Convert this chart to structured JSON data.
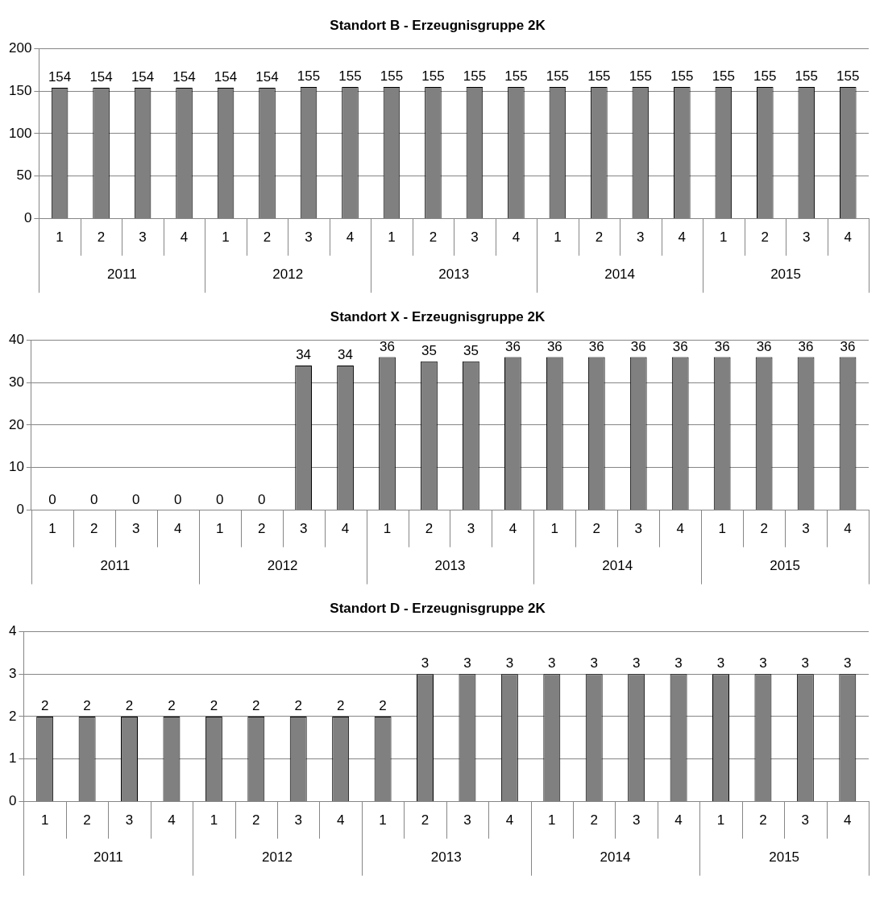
{
  "chart_data": [
    {
      "type": "bar",
      "title": "Standort B - Erzeugnisgruppe 2K",
      "categories": [
        "1",
        "2",
        "3",
        "4",
        "1",
        "2",
        "3",
        "4",
        "1",
        "2",
        "3",
        "4",
        "1",
        "2",
        "3",
        "4",
        "1",
        "2",
        "3",
        "4"
      ],
      "values": [
        154,
        154,
        154,
        154,
        154,
        154,
        155,
        155,
        155,
        155,
        155,
        155,
        155,
        155,
        155,
        155,
        155,
        155,
        155,
        155
      ],
      "color": "#808080",
      "ylim": [
        0,
        200
      ],
      "yticks": [
        0,
        50,
        100,
        150,
        200
      ],
      "grid": "y",
      "legend": false,
      "data_labels": true,
      "annotations": [
        "2011",
        "2012",
        "2013",
        "2014",
        "2015"
      ]
    },
    {
      "type": "bar",
      "title": "Standort X - Erzeugnisgruppe 2K",
      "categories": [
        "1",
        "2",
        "3",
        "4",
        "1",
        "2",
        "3",
        "4",
        "1",
        "2",
        "3",
        "4",
        "1",
        "2",
        "3",
        "4",
        "1",
        "2",
        "3",
        "4"
      ],
      "values": [
        0,
        0,
        0,
        0,
        0,
        0,
        34,
        34,
        36,
        35,
        35,
        36,
        36,
        36,
        36,
        36,
        36,
        36,
        36,
        36
      ],
      "color": "#808080",
      "ylim": [
        0,
        40
      ],
      "yticks": [
        0,
        10,
        20,
        30,
        40
      ],
      "grid": "y",
      "legend": false,
      "data_labels": true,
      "annotations": [
        "2011",
        "2012",
        "2013",
        "2014",
        "2015"
      ]
    },
    {
      "type": "bar",
      "title": "Standort D - Erzeugnisgruppe 2K",
      "categories": [
        "1",
        "2",
        "3",
        "4",
        "1",
        "2",
        "3",
        "4",
        "1",
        "2",
        "3",
        "4",
        "1",
        "2",
        "3",
        "4",
        "1",
        "2",
        "3",
        "4"
      ],
      "values": [
        2,
        2,
        2,
        2,
        2,
        2,
        2,
        2,
        2,
        3,
        3,
        3,
        3,
        3,
        3,
        3,
        3,
        3,
        3,
        3
      ],
      "color": "#808080",
      "ylim": [
        0,
        4
      ],
      "yticks": [
        0,
        1,
        2,
        3,
        4
      ],
      "grid": "y",
      "legend": false,
      "data_labels": true,
      "annotations": [
        "2011",
        "2012",
        "2013",
        "2014",
        "2015"
      ]
    }
  ]
}
